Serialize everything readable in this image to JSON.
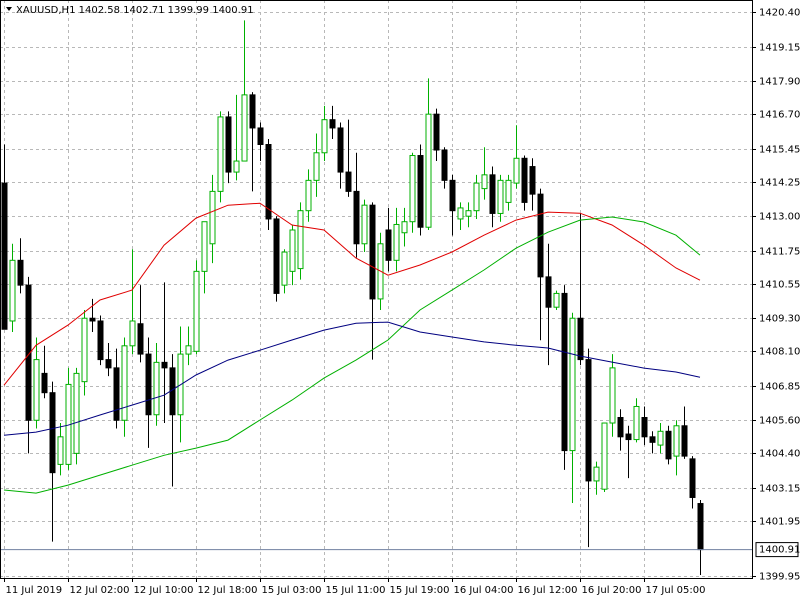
{
  "chart_data": {
    "type": "candlestick",
    "title": "XAUUSD,H1  1402.58 1402.71 1399.99 1400.91",
    "ylim": [
      1399.88,
      1420.84
    ],
    "yticks": [
      {
        "value": 1420.4,
        "label": "1420.40"
      },
      {
        "value": 1419.15,
        "label": "1419.15"
      },
      {
        "value": 1417.9,
        "label": "1417.90"
      },
      {
        "value": 1416.7,
        "label": "1416.70"
      },
      {
        "value": 1415.45,
        "label": "1415.45"
      },
      {
        "value": 1414.25,
        "label": "1414.25"
      },
      {
        "value": 1413,
        "label": "1413.00"
      },
      {
        "value": 1411.75,
        "label": "1411.75"
      },
      {
        "value": 1410.55,
        "label": "1410.55"
      },
      {
        "value": 1409.3,
        "label": "1409.30"
      },
      {
        "value": 1408.1,
        "label": "1408.10"
      },
      {
        "value": 1406.85,
        "label": "1406.85"
      },
      {
        "value": 1405.6,
        "label": "1405.60"
      },
      {
        "value": 1404.4,
        "label": "1404.40"
      },
      {
        "value": 1403.15,
        "label": "1403.15"
      },
      {
        "value": 1401.95,
        "label": "1401.95"
      },
      {
        "value": 1399.95,
        "label": "1399.95"
      }
    ],
    "xticks": [
      {
        "value": 0,
        "label": "11 Jul 2019"
      },
      {
        "value": 8,
        "label": "12 Jul 02:00"
      },
      {
        "value": 16,
        "label": "12 Jul 10:00"
      },
      {
        "value": 24,
        "label": "12 Jul 18:00"
      },
      {
        "value": 32,
        "label": "15 Jul 03:00"
      },
      {
        "value": 40,
        "label": "15 Jul 11:00"
      },
      {
        "value": 48,
        "label": "15 Jul 19:00"
      },
      {
        "value": 56,
        "label": "16 Jul 04:00"
      },
      {
        "value": 64,
        "label": "16 Jul 12:00"
      },
      {
        "value": 72,
        "label": "16 Jul 20:00"
      },
      {
        "value": 80,
        "label": "17 Jul 05:00"
      }
    ],
    "grid": true,
    "bull_color": "#00b000",
    "bear_color": "#000000",
    "current_price": 1400.91,
    "candles": [
      [
        1414.2,
        1415.6,
        1409.0,
        1408.9
      ],
      [
        1409.2,
        1412.0,
        1408.8,
        1411.4
      ],
      [
        1411.4,
        1412.2,
        1410.2,
        1410.5
      ],
      [
        1410.5,
        1410.8,
        1404.4,
        1405.6
      ],
      [
        1405.6,
        1408.6,
        1405.3,
        1407.8
      ],
      [
        1407.3,
        1408.3,
        1406.4,
        1406.6
      ],
      [
        1406.6,
        1407.0,
        1401.2,
        1403.7
      ],
      [
        1404.0,
        1405.5,
        1403.6,
        1405.0
      ],
      [
        1404.0,
        1407.5,
        1403.8,
        1406.9
      ],
      [
        1404.4,
        1407.5,
        1404.0,
        1407.3
      ],
      [
        1407.0,
        1409.6,
        1406.5,
        1409.3
      ],
      [
        1409.3,
        1410.0,
        1408.8,
        1409.2
      ],
      [
        1409.2,
        1409.4,
        1407.6,
        1407.8
      ],
      [
        1407.8,
        1408.4,
        1407.2,
        1407.5
      ],
      [
        1407.5,
        1408.2,
        1405.3,
        1405.6
      ],
      [
        1405.6,
        1408.6,
        1405.0,
        1408.3
      ],
      [
        1408.3,
        1411.8,
        1408.0,
        1409.2
      ],
      [
        1409.1,
        1410.5,
        1407.7,
        1408.0
      ],
      [
        1408.0,
        1408.6,
        1404.6,
        1405.8
      ],
      [
        1405.8,
        1408.4,
        1405.4,
        1407.7
      ],
      [
        1407.7,
        1410.6,
        1405.5,
        1407.5
      ],
      [
        1407.5,
        1408.0,
        1403.2,
        1405.8
      ],
      [
        1405.8,
        1409.0,
        1404.8,
        1408.0
      ],
      [
        1408.0,
        1409.0,
        1407.6,
        1408.3
      ],
      [
        1408.1,
        1411.4,
        1408.0,
        1411.0
      ],
      [
        1411.0,
        1412.8,
        1410.2,
        1412.8
      ],
      [
        1412.0,
        1414.5,
        1411.3,
        1413.9
      ],
      [
        1413.9,
        1416.8,
        1413.5,
        1416.6
      ],
      [
        1416.6,
        1416.8,
        1414.2,
        1414.6
      ],
      [
        1414.6,
        1417.4,
        1414.3,
        1415.0
      ],
      [
        1415.0,
        1420.1,
        1415.0,
        1417.4
      ],
      [
        1417.4,
        1417.5,
        1413.9,
        1416.2
      ],
      [
        1416.2,
        1416.4,
        1415.0,
        1415.6
      ],
      [
        1415.6,
        1415.8,
        1412.5,
        1412.9
      ],
      [
        1412.9,
        1413.0,
        1409.9,
        1410.2
      ],
      [
        1410.5,
        1411.8,
        1410.2,
        1411.7
      ],
      [
        1411.0,
        1412.7,
        1410.5,
        1412.5
      ],
      [
        1411.1,
        1413.5,
        1410.7,
        1413.2
      ],
      [
        1413.2,
        1414.7,
        1412.8,
        1414.3
      ],
      [
        1414.3,
        1416.0,
        1413.7,
        1415.3
      ],
      [
        1415.3,
        1417.0,
        1415.0,
        1416.5
      ],
      [
        1416.5,
        1417.0,
        1415.8,
        1416.2
      ],
      [
        1416.2,
        1416.4,
        1414.0,
        1414.6
      ],
      [
        1414.6,
        1416.5,
        1413.7,
        1413.9
      ],
      [
        1413.9,
        1415.3,
        1411.5,
        1412.0
      ],
      [
        1412.0,
        1413.6,
        1411.7,
        1413.4
      ],
      [
        1413.4,
        1413.5,
        1407.8,
        1410.0
      ],
      [
        1410.0,
        1412.4,
        1409.6,
        1412.0
      ],
      [
        1412.5,
        1413.3,
        1411.0,
        1411.4
      ],
      [
        1411.4,
        1413.3,
        1411.0,
        1412.7
      ],
      [
        1412.4,
        1413.3,
        1411.9,
        1412.8
      ],
      [
        1412.8,
        1415.3,
        1412.4,
        1415.2
      ],
      [
        1415.2,
        1415.6,
        1412.3,
        1412.6
      ],
      [
        1412.6,
        1418.0,
        1412.5,
        1416.7
      ],
      [
        1416.7,
        1416.9,
        1415.0,
        1415.4
      ],
      [
        1415.4,
        1415.5,
        1414.0,
        1414.3
      ],
      [
        1414.3,
        1414.5,
        1412.3,
        1413.2
      ],
      [
        1412.9,
        1413.5,
        1412.5,
        1413.3
      ],
      [
        1413.0,
        1413.5,
        1412.6,
        1413.2
      ],
      [
        1413.2,
        1414.5,
        1412.9,
        1414.2
      ],
      [
        1414.0,
        1415.5,
        1413.6,
        1414.5
      ],
      [
        1414.5,
        1414.8,
        1412.6,
        1413.1
      ],
      [
        1413.1,
        1414.5,
        1412.8,
        1414.3
      ],
      [
        1413.5,
        1414.5,
        1413.2,
        1414.3
      ],
      [
        1414.2,
        1416.3,
        1414.0,
        1415.1
      ],
      [
        1415.1,
        1415.2,
        1413.2,
        1413.5
      ],
      [
        1414.8,
        1415.1,
        1413.2,
        1413.8
      ],
      [
        1413.8,
        1414.0,
        1408.5,
        1410.8
      ],
      [
        1410.8,
        1412.0,
        1407.6,
        1409.7
      ],
      [
        1409.7,
        1410.3,
        1409.6,
        1410.2
      ],
      [
        1410.2,
        1410.5,
        1403.8,
        1404.5
      ],
      [
        1404.5,
        1409.5,
        1402.6,
        1409.3
      ],
      [
        1409.3,
        1413.1,
        1407.6,
        1407.8
      ],
      [
        1407.8,
        1408.2,
        1401.0,
        1403.4
      ],
      [
        1403.4,
        1404.1,
        1402.9,
        1403.9
      ],
      [
        1403.1,
        1405.5,
        1403.0,
        1405.5
      ],
      [
        1405.5,
        1408.0,
        1405.0,
        1407.5
      ],
      [
        1405.7,
        1406.0,
        1404.5,
        1405.0
      ],
      [
        1405.1,
        1405.4,
        1403.5,
        1404.9
      ],
      [
        1404.9,
        1406.4,
        1404.8,
        1406.1
      ],
      [
        1405.7,
        1406.1,
        1404.7,
        1405.0
      ],
      [
        1405.0,
        1405.2,
        1404.4,
        1404.8
      ],
      [
        1404.7,
        1405.5,
        1404.4,
        1405.2
      ],
      [
        1405.2,
        1405.4,
        1404.0,
        1404.2
      ],
      [
        1404.3,
        1405.6,
        1403.6,
        1405.4
      ],
      [
        1405.4,
        1406.1,
        1404.2,
        1404.3
      ],
      [
        1404.2,
        1404.3,
        1402.4,
        1402.8
      ],
      [
        1402.58,
        1402.71,
        1399.99,
        1400.91
      ]
    ],
    "lines": [
      {
        "color": "#e00000",
        "x": [
          0,
          4,
          8,
          12,
          16,
          20,
          24,
          28,
          32,
          36,
          40,
          44,
          48,
          52,
          56,
          60,
          64,
          68,
          72,
          76,
          80,
          84,
          87
        ],
        "values": [
          1406.87,
          1408.32,
          1409.05,
          1409.96,
          1410.32,
          1411.95,
          1412.93,
          1413.4,
          1413.47,
          1412.68,
          1412.5,
          1411.48,
          1410.86,
          1411.23,
          1411.7,
          1412.31,
          1412.86,
          1413.15,
          1413.11,
          1412.68,
          1411.95,
          1411.12,
          1410.68
        ]
      },
      {
        "color": "#00b000",
        "x": [
          0,
          4,
          8,
          12,
          16,
          20,
          24,
          28,
          32,
          36,
          40,
          44,
          48,
          52,
          56,
          60,
          64,
          68,
          72,
          76,
          80,
          84,
          87
        ],
        "values": [
          1403.07,
          1402.96,
          1403.25,
          1403.61,
          1403.97,
          1404.33,
          1404.59,
          1404.88,
          1405.61,
          1406.33,
          1407.13,
          1407.78,
          1408.51,
          1409.6,
          1410.32,
          1411.05,
          1411.84,
          1412.42,
          1412.86,
          1412.97,
          1412.79,
          1412.31,
          1411.59
        ]
      },
      {
        "color": "#000080",
        "x": [
          0,
          4,
          8,
          12,
          16,
          20,
          24,
          28,
          32,
          36,
          40,
          44,
          48,
          52,
          56,
          60,
          64,
          68,
          72,
          76,
          80,
          84,
          87
        ],
        "values": [
          1405.06,
          1405.17,
          1405.42,
          1405.79,
          1406.15,
          1406.51,
          1407.24,
          1407.78,
          1408.14,
          1408.51,
          1408.87,
          1409.12,
          1409.16,
          1408.8,
          1408.62,
          1408.44,
          1408.32,
          1408.22,
          1407.93,
          1407.71,
          1407.49,
          1407.35,
          1407.16
        ]
      }
    ]
  }
}
